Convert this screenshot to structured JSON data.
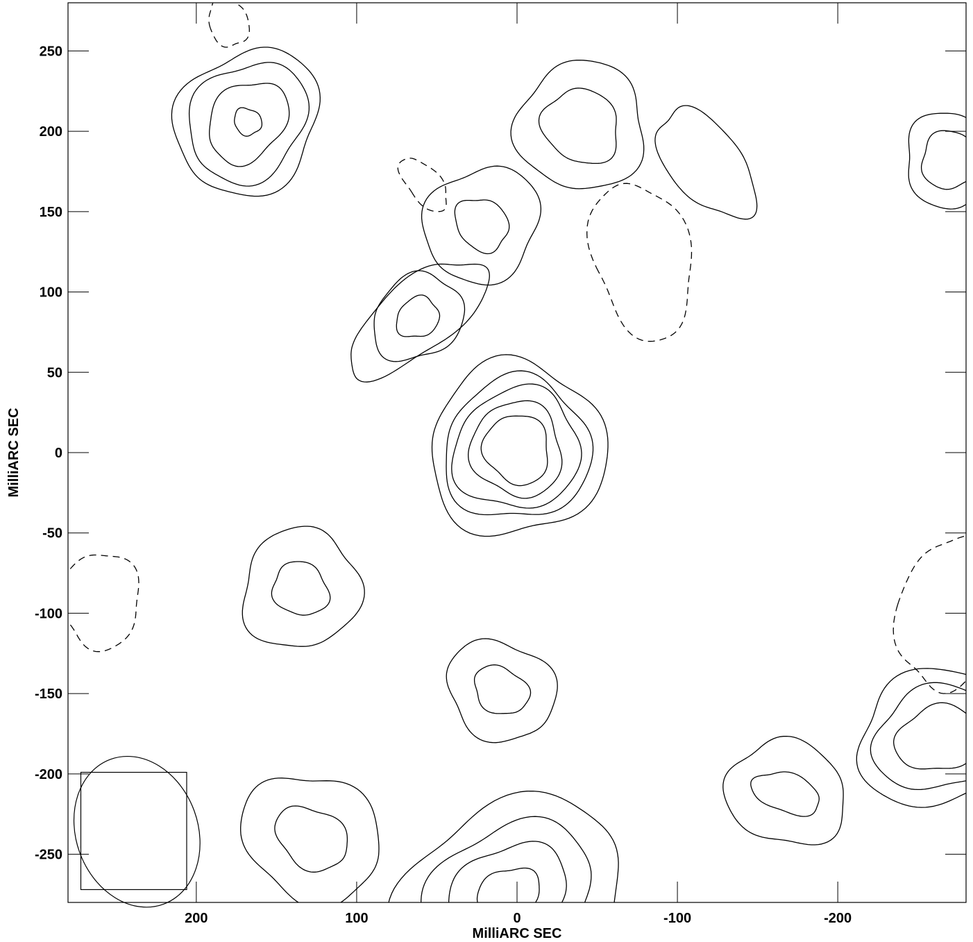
{
  "chart_data": {
    "type": "contour",
    "xlabel": "MilliARC SEC",
    "ylabel": "MilliARC SEC",
    "xlim": [
      280,
      -280
    ],
    "ylim": [
      -280,
      280
    ],
    "x_ticks": [
      200,
      100,
      0,
      -100,
      -200
    ],
    "x_tick_labels": [
      "200",
      "100",
      "0",
      "-100",
      "-200"
    ],
    "y_ticks": [
      250,
      200,
      150,
      100,
      50,
      0,
      -50,
      -100,
      -150,
      -200,
      -250
    ],
    "y_tick_labels": [
      "250",
      "200",
      "150",
      "100",
      "50",
      "0",
      "-50",
      "-100",
      "-150",
      "-200",
      "-250"
    ],
    "line_color": "#000000",
    "negative_contours": "dashed",
    "beam": {
      "center_x": 237,
      "center_y": -236,
      "major_mas": 48,
      "minor_mas": 38,
      "angle_deg": -20
    },
    "beam_box": {
      "x": [
        272,
        206
      ],
      "y": [
        -272,
        -199
      ]
    },
    "components": [
      {
        "x": 0,
        "y": 2,
        "rx": [
          20,
          28,
          40,
          46,
          55
        ],
        "ry": [
          22,
          30,
          37,
          44,
          54
        ],
        "angle": -25,
        "sign": 1
      },
      {
        "x": 62,
        "y": 84,
        "rx": [
          14,
          30,
          52
        ],
        "ry": [
          12,
          25,
          22
        ],
        "angle": -38,
        "sign": 1
      },
      {
        "x": 168,
        "y": 206,
        "rx": [
          8,
          28,
          40,
          48
        ],
        "ry": [
          9,
          22,
          34,
          42
        ],
        "angle": -48,
        "sign": 1
      },
      {
        "x": 22,
        "y": 142,
        "rx": [
          15,
          38
        ],
        "ry": [
          18,
          34
        ],
        "angle": -45,
        "sign": 1
      },
      {
        "x": -40,
        "y": 203,
        "rx": [
          22,
          40
        ],
        "ry": [
          25,
          40
        ],
        "angle": -52,
        "sign": 1
      },
      {
        "x": 135,
        "y": -85,
        "rx": [
          16,
          38
        ],
        "ry": [
          18,
          36
        ],
        "angle": -55,
        "sign": 1
      },
      {
        "x": 10,
        "y": -148,
        "rx": [
          14,
          30
        ],
        "ry": [
          18,
          35
        ],
        "angle": -60,
        "sign": 1
      },
      {
        "x": 128,
        "y": -240,
        "rx": [
          18,
          38
        ],
        "ry": [
          24,
          45
        ],
        "angle": -58,
        "sign": 1
      },
      {
        "x": -168,
        "y": -212,
        "rx": [
          12,
          32
        ],
        "ry": [
          22,
          38
        ],
        "angle": -72,
        "sign": 1
      },
      {
        "x": 5,
        "y": -275,
        "rx": [
          20,
          38,
          55,
          75
        ],
        "ry": [
          16,
          30,
          42,
          55
        ],
        "angle": -25,
        "sign": 1
      },
      {
        "x": -118,
        "y": 180,
        "rx": [
          22
        ],
        "ry": [
          40
        ],
        "angle": -40,
        "sign": 1
      },
      {
        "x": -262,
        "y": -178,
        "rx": [
          26,
          40,
          50
        ],
        "ry": [
          20,
          32,
          42
        ],
        "angle": -15,
        "sign": 1
      },
      {
        "x": -270,
        "y": 182,
        "rx": [
          18,
          28
        ],
        "ry": [
          18,
          30
        ],
        "angle": -20,
        "sign": 1
      },
      {
        "x": 58,
        "y": 167,
        "rx": [
          10
        ],
        "ry": [
          20
        ],
        "angle": -40,
        "sign": -1
      },
      {
        "x": -78,
        "y": 120,
        "rx": [
          30
        ],
        "ry": [
          50
        ],
        "angle": -15,
        "sign": -1
      },
      {
        "x": 260,
        "y": -92,
        "rx": [
          25
        ],
        "ry": [
          30
        ],
        "angle": 0,
        "sign": -1
      },
      {
        "x": -268,
        "y": -100,
        "rx": [
          30
        ],
        "ry": [
          48
        ],
        "angle": 10,
        "sign": -1
      },
      {
        "x": 180,
        "y": 268,
        "rx": [
          12
        ],
        "ry": [
          16
        ],
        "angle": -20,
        "sign": -1
      }
    ]
  }
}
